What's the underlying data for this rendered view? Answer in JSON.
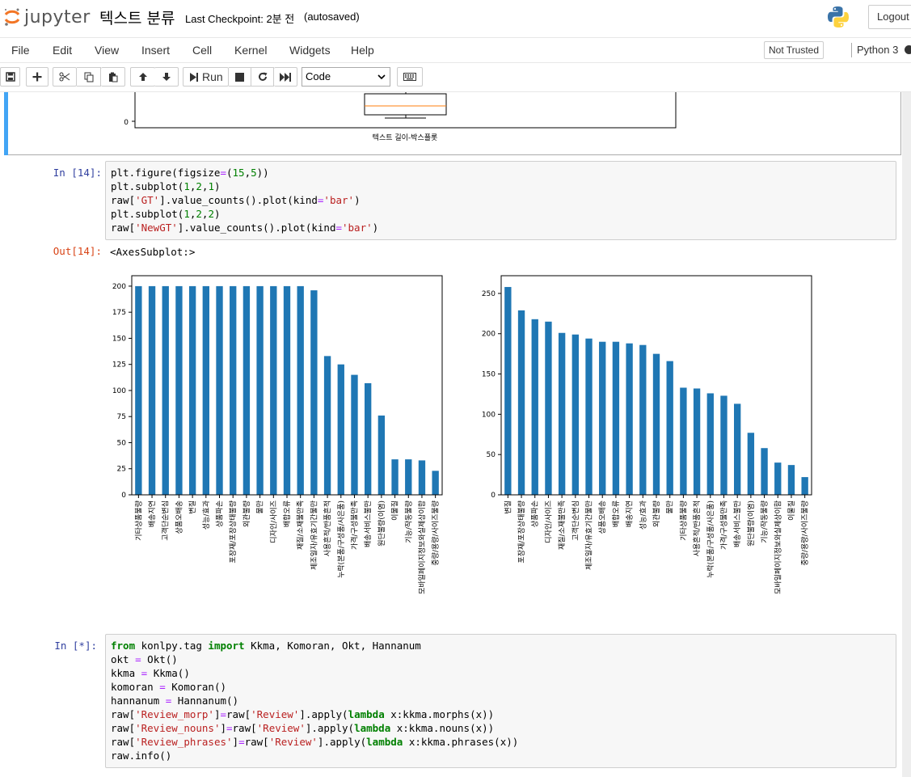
{
  "header": {
    "logo_text": "jupyter",
    "notebook_title": "텍스트 분류",
    "checkpoint": "Last Checkpoint: 2분 전",
    "autosave_status": "(autosaved)",
    "logout_label": "Logout"
  },
  "menubar": {
    "items": [
      "File",
      "Edit",
      "View",
      "Insert",
      "Cell",
      "Kernel",
      "Widgets",
      "Help"
    ],
    "trusted_label": "Not Trusted",
    "kernel_name": "Python 3"
  },
  "toolbar": {
    "run_label": "Run",
    "cell_type": "Code",
    "icons": [
      "save-icon",
      "plus-icon",
      "cut-icon",
      "copy-icon",
      "paste-icon",
      "arrow-up-icon",
      "arrow-down-icon",
      "step-forward-icon",
      "stop-icon",
      "restart-icon",
      "fast-forward-icon",
      "keyboard-icon"
    ]
  },
  "cells": {
    "boxplot": {
      "xlabel": "텍스트 길이-박스플롯",
      "y_tick": "0"
    },
    "cell14": {
      "in_prompt": "In [14]:",
      "out_prompt": "Out[14]:",
      "output_text": "<AxesSubplot:>",
      "code_lines": [
        "plt.figure(figsize=(15,5))",
        "plt.subplot(1,2,1)",
        "raw['GT'].value_counts().plot(kind='bar')",
        "plt.subplot(1,2,2)",
        "raw['NewGT'].value_counts().plot(kind='bar')"
      ]
    },
    "cell_running": {
      "in_prompt": "In [*]:",
      "code_lines": [
        "from konlpy.tag import Kkma, Komoran, Okt, Hannanum",
        "okt = Okt()",
        "kkma = Kkma()",
        "komoran = Komoran()",
        "hannanum = Hannanum()",
        "raw['Review_morp']=raw['Review'].apply(lambda x:kkma.morphs(x))",
        "raw['Review_nouns']=raw['Review'].apply(lambda x:kkma.nouns(x))",
        "raw['Review_phrases']=raw['Review'].apply(lambda x:kkma.phrases(x))",
        "raw.info()"
      ]
    }
  },
  "chart_data": [
    {
      "type": "bar",
      "bar_color": "#1f77b4",
      "ylim": [
        0,
        210
      ],
      "yticks": [
        0,
        25,
        50,
        75,
        100,
        125,
        150,
        175,
        200
      ],
      "categories": [
        "기타상품불량",
        "배송지연",
        "고객단순변심",
        "상품오배송",
        "변질",
        "성능/효과",
        "상품파손",
        "포장재/포장상태불량",
        "외관불량",
        "물만",
        "디자인/사이즈",
        "배합오류",
        "재질/소재불만족",
        "제조일자/유효기간불만",
        "사용흔적/반품흔적",
        "누락(본품/구성품/사은품)",
        "가격/구성불만족",
        "배송서비스불만",
        "원단불량(이염)",
        "이물질",
        "기능/작동불량",
        "모바일페이지정보와실제상이함",
        "중량/용량/사이즈불량"
      ],
      "values": [
        200,
        200,
        200,
        200,
        200,
        200,
        200,
        200,
        200,
        200,
        200,
        200,
        200,
        196,
        133,
        125,
        115,
        107,
        76,
        34,
        34,
        33,
        23
      ]
    },
    {
      "type": "bar",
      "bar_color": "#1f77b4",
      "ylim": [
        0,
        272
      ],
      "yticks": [
        0,
        50,
        100,
        150,
        200,
        250
      ],
      "categories": [
        "변질",
        "포장재/포장상태불량",
        "상품파손",
        "디자인/사이즈",
        "재질/소재불만족",
        "고객단순변심",
        "제조일자/유효기간불만",
        "상품오배송",
        "배합오류",
        "배송지연",
        "성능/효과",
        "외관불량",
        "물만",
        "기타상품불량",
        "사용흔적/반품흔적",
        "누락(본품/구성품/사은품)",
        "가격/구성불만족",
        "배송서비스불만",
        "원단불량(이염)",
        "기능/작동불량",
        "모바일페이지정보와실제상이함",
        "이물질",
        "중량/용량/사이즈불량"
      ],
      "values": [
        258,
        229,
        218,
        215,
        201,
        199,
        194,
        190,
        190,
        188,
        186,
        175,
        166,
        133,
        132,
        126,
        123,
        113,
        77,
        58,
        40,
        37,
        22
      ]
    }
  ]
}
